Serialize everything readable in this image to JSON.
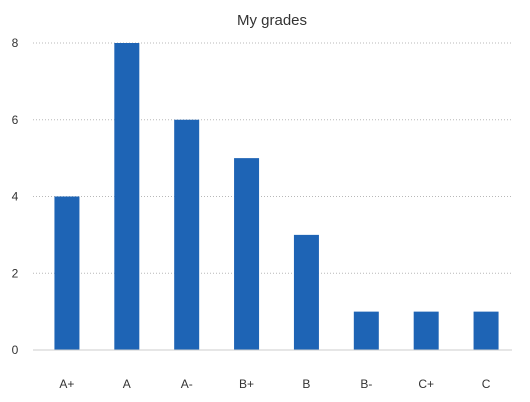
{
  "chart_data": {
    "type": "bar",
    "title": "My grades",
    "xlabel": "",
    "ylabel": "",
    "categories": [
      "A+",
      "A",
      "A-",
      "B+",
      "B",
      "B-",
      "C+",
      "C"
    ],
    "values": [
      4,
      8,
      6,
      5,
      3,
      1,
      1,
      1
    ],
    "yticks": [
      0,
      2,
      4,
      6,
      8
    ],
    "ylim": [
      0,
      8
    ],
    "grid": true,
    "legend": "none",
    "colors": {
      "bar": "#1e64b5",
      "grid": "#b8b8b8",
      "axis": "#cccccc",
      "text": "#333333"
    }
  }
}
